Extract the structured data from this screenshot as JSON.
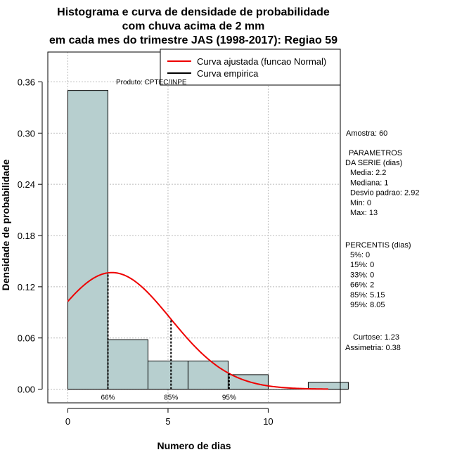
{
  "chart_data": {
    "type": "histogram",
    "title_lines": [
      "Histograma e curva de densidade de probabilidade",
      "com chuva acima de 2 mm",
      "em cada mes do trimestre JAS (1998-2017): Regiao 59"
    ],
    "xlabel": "Numero de dias",
    "ylabel": "Densidade de probabilidade",
    "xlim": [
      -1,
      13.6
    ],
    "ylim": [
      -0.016,
      0.395
    ],
    "x_ticks": [
      0,
      5,
      10
    ],
    "y_ticks": [
      0.0,
      0.06,
      0.12,
      0.18,
      0.24,
      0.3,
      0.36
    ],
    "y_tick_labels": [
      "0.00",
      "0.06",
      "0.12",
      "0.18",
      "0.24",
      "0.30",
      "0.36"
    ],
    "bins": [
      {
        "x0": 0,
        "x1": 2,
        "density": 0.35
      },
      {
        "x0": 2,
        "x1": 4,
        "density": 0.058
      },
      {
        "x0": 4,
        "x1": 6,
        "density": 0.033
      },
      {
        "x0": 6,
        "x1": 8,
        "density": 0.033
      },
      {
        "x0": 8,
        "x1": 10,
        "density": 0.017
      },
      {
        "x0": 10,
        "x1": 12,
        "density": 0.0
      },
      {
        "x0": 12,
        "x1": 14,
        "density": 0.008
      }
    ],
    "normal_fit": {
      "mean": 2.2,
      "sd": 2.92,
      "x_range": [
        0,
        13
      ]
    },
    "percentile_markers": [
      {
        "label": "66%",
        "x": 2
      },
      {
        "label": "85%",
        "x": 5.15
      },
      {
        "label": "95%",
        "x": 8.05
      }
    ],
    "legend": [
      {
        "label": "Curva ajustada (funcao Normal)",
        "color": "#ee0000"
      },
      {
        "label": "Curva empirica",
        "color": "#000000"
      }
    ],
    "product_label": "Produto: CPTEC/INPE",
    "side_panel": {
      "sample": "Amostra: 60",
      "params_title_1": "PARAMETROS",
      "params_title_2": "DA SERIE (dias)",
      "params": [
        "Media: 2.2",
        "Mediana: 1",
        "Desvio padrao: 2.92",
        "Min: 0",
        "Max: 13"
      ],
      "percentis_title": "PERCENTIS (dias)",
      "percentis": [
        "5%: 0",
        "15%: 0",
        "33%: 0",
        "66%: 2",
        "85%: 5.15",
        "95%: 8.05"
      ],
      "curtose": "Curtose: 1.23",
      "assimetria": "Assimetria: 0.38"
    },
    "colors": {
      "bar_fill": "#b7cfcf",
      "curve": "#ee0000",
      "grid": "#bbbbbb"
    }
  }
}
